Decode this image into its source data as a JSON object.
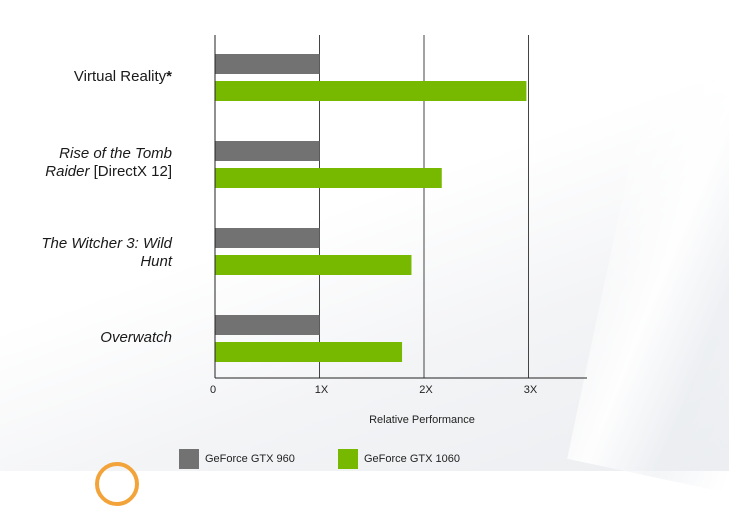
{
  "colors": {
    "gtx960": "#727272",
    "gtx1060": "#76b900",
    "grid": "#444444"
  },
  "categories": [
    {
      "lines": [
        [
          {
            "t": "Virtual Reality",
            "s": "normal"
          },
          {
            "t": "*",
            "s": "bold"
          }
        ]
      ]
    },
    {
      "lines": [
        [
          {
            "t": "Rise of the Tomb",
            "s": "italic"
          }
        ],
        [
          {
            "t": "Raider",
            "s": "italic"
          },
          {
            "t": " [DirectX 12]",
            "s": "normal"
          }
        ]
      ]
    },
    {
      "lines": [
        [
          {
            "t": "The Witcher 3: Wild",
            "s": "italic"
          }
        ],
        [
          {
            "t": "Hunt",
            "s": "italic"
          }
        ]
      ]
    },
    {
      "lines": [
        [
          {
            "t": "Overwatch",
            "s": "italic"
          }
        ]
      ]
    }
  ],
  "chart_data": {
    "type": "bar",
    "orientation": "horizontal",
    "categories": [
      "Virtual Reality*",
      "Rise of the Tomb Raider [DirectX 12]",
      "The Witcher 3: Wild Hunt",
      "Overwatch"
    ],
    "series": [
      {
        "name": "GeForce GTX 960",
        "values": [
          1.0,
          1.0,
          1.0,
          1.0
        ]
      },
      {
        "name": "GeForce GTX 1060",
        "values": [
          2.98,
          2.17,
          1.88,
          1.79
        ]
      }
    ],
    "xlabel": "Relative Performance",
    "xlim": [
      0,
      3.5
    ],
    "xticks": [
      0,
      1,
      2,
      3
    ],
    "xtick_labels": [
      "0",
      "1X",
      "2X",
      "3X"
    ],
    "grid": true,
    "legend": "bottom"
  }
}
